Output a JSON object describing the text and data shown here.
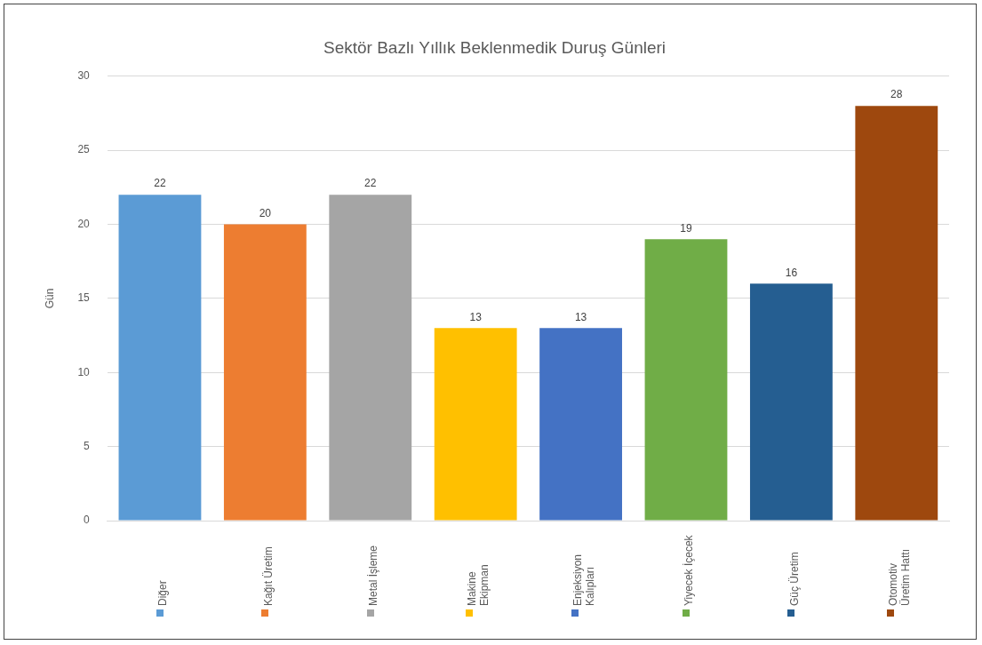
{
  "chart_data": {
    "type": "bar",
    "title": "Sektör Bazlı Yıllık Beklenmedik Duruş Günleri",
    "ylabel": "Gün",
    "categories": [
      "Diğer",
      "Kağıt Üretim",
      "Metal İşleme",
      "Makine Ekipman",
      "Enjeksiyon Kalıpları",
      "Yiyecek İçecek",
      "Güç Üretim",
      "Otomotiv Üretim Hattı"
    ],
    "values": [
      22,
      20,
      22,
      13,
      13,
      19,
      16,
      28
    ],
    "colors": [
      "#5b9bd5",
      "#ed7d31",
      "#a5a5a5",
      "#ffc000",
      "#4472c4",
      "#70ad47",
      "#255e91",
      "#9e480e"
    ],
    "ylim": [
      0,
      30
    ],
    "yticks": [
      0,
      5,
      10,
      15,
      20,
      25,
      30
    ],
    "grid": "y",
    "data_labels": true
  }
}
